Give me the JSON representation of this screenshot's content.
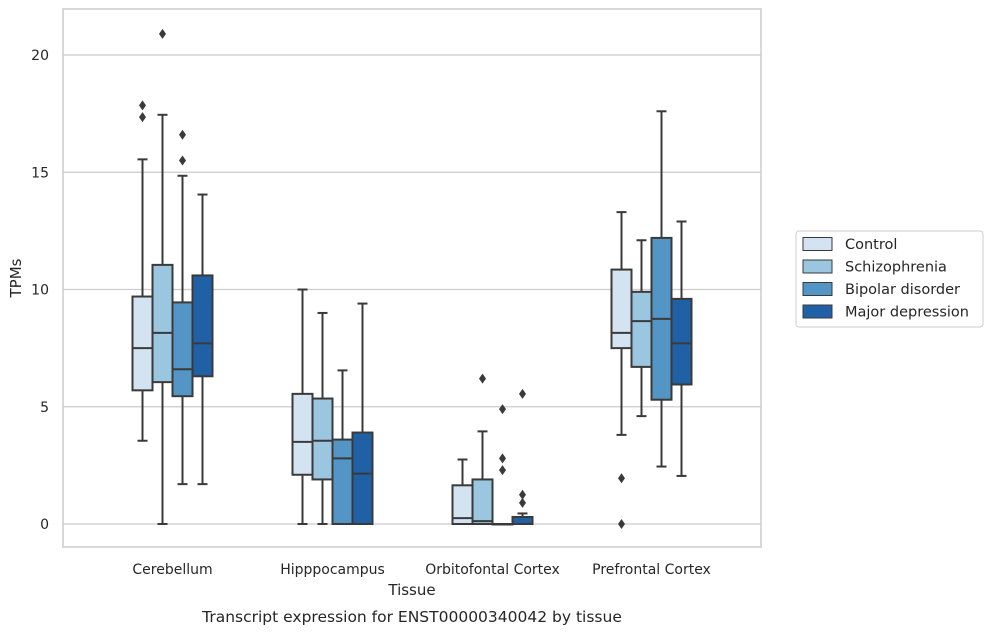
{
  "chart_data": {
    "type": "box",
    "xlabel": "Tissue",
    "ylabel": "TPMs",
    "caption": "Transcript expression for ENST00000340042 by tissue",
    "ylim": [
      -1,
      22
    ],
    "yticks": [
      0,
      5,
      10,
      15,
      20
    ],
    "grid": "horizontal",
    "legend_position": "right",
    "categories": [
      "Cerebellum",
      "Hipppocampus",
      "Orbitofontal Cortex",
      "Prefrontal Cortex"
    ],
    "series": [
      {
        "name": "Control",
        "color": "#d4e3f2",
        "boxes": [
          {
            "whisker_low": 3.55,
            "q1": 5.7,
            "median": 7.5,
            "q3": 9.7,
            "whisker_high": 15.55,
            "outliers": [
              17.35,
              17.85
            ]
          },
          {
            "whisker_low": 0.0,
            "q1": 2.1,
            "median": 3.5,
            "q3": 5.55,
            "whisker_high": 10.0,
            "outliers": []
          },
          {
            "whisker_low": 0.0,
            "q1": 0.0,
            "median": 0.25,
            "q3": 1.65,
            "whisker_high": 2.75,
            "outliers": []
          },
          {
            "whisker_low": 3.8,
            "q1": 7.5,
            "median": 8.15,
            "q3": 10.85,
            "whisker_high": 13.3,
            "outliers": [
              0.0,
              1.95
            ]
          }
        ]
      },
      {
        "name": "Schizophrenia",
        "color": "#9ac6e0",
        "boxes": [
          {
            "whisker_low": 0.0,
            "q1": 6.05,
            "median": 8.15,
            "q3": 11.05,
            "whisker_high": 17.45,
            "outliers": [
              20.9
            ]
          },
          {
            "whisker_low": 0.0,
            "q1": 1.9,
            "median": 3.55,
            "q3": 5.35,
            "whisker_high": 9.0,
            "outliers": []
          },
          {
            "whisker_low": 0.0,
            "q1": 0.0,
            "median": 0.12,
            "q3": 1.9,
            "whisker_high": 3.95,
            "outliers": [
              6.2
            ]
          },
          {
            "whisker_low": 4.6,
            "q1": 6.7,
            "median": 8.65,
            "q3": 9.9,
            "whisker_high": 12.1,
            "outliers": []
          }
        ]
      },
      {
        "name": "Bipolar disorder",
        "color": "#5395c4",
        "boxes": [
          {
            "whisker_low": 1.7,
            "q1": 5.45,
            "median": 6.6,
            "q3": 9.45,
            "whisker_high": 14.85,
            "outliers": [
              15.5,
              16.6
            ]
          },
          {
            "whisker_low": 0.0,
            "q1": 0.0,
            "median": 2.8,
            "q3": 3.6,
            "whisker_high": 6.55,
            "outliers": []
          },
          {
            "whisker_low": 0.0,
            "q1": 0.0,
            "median": 0.0,
            "q3": 0.0,
            "whisker_high": 0.0,
            "outliers": [
              2.3,
              2.8,
              4.9
            ]
          },
          {
            "whisker_low": 2.45,
            "q1": 5.3,
            "median": 8.75,
            "q3": 12.2,
            "whisker_high": 17.6,
            "outliers": []
          }
        ]
      },
      {
        "name": "Major depression",
        "color": "#2061a6",
        "boxes": [
          {
            "whisker_low": 1.7,
            "q1": 6.3,
            "median": 7.7,
            "q3": 10.6,
            "whisker_high": 14.05,
            "outliers": []
          },
          {
            "whisker_low": 0.0,
            "q1": 0.0,
            "median": 2.15,
            "q3": 3.9,
            "whisker_high": 9.4,
            "outliers": []
          },
          {
            "whisker_low": 0.0,
            "q1": 0.0,
            "median": 0.0,
            "q3": 0.3,
            "whisker_high": 0.45,
            "outliers": [
              0.9,
              1.25,
              5.55
            ]
          },
          {
            "whisker_low": 2.05,
            "q1": 5.95,
            "median": 7.7,
            "q3": 9.6,
            "whisker_high": 12.9,
            "outliers": []
          }
        ]
      }
    ]
  }
}
